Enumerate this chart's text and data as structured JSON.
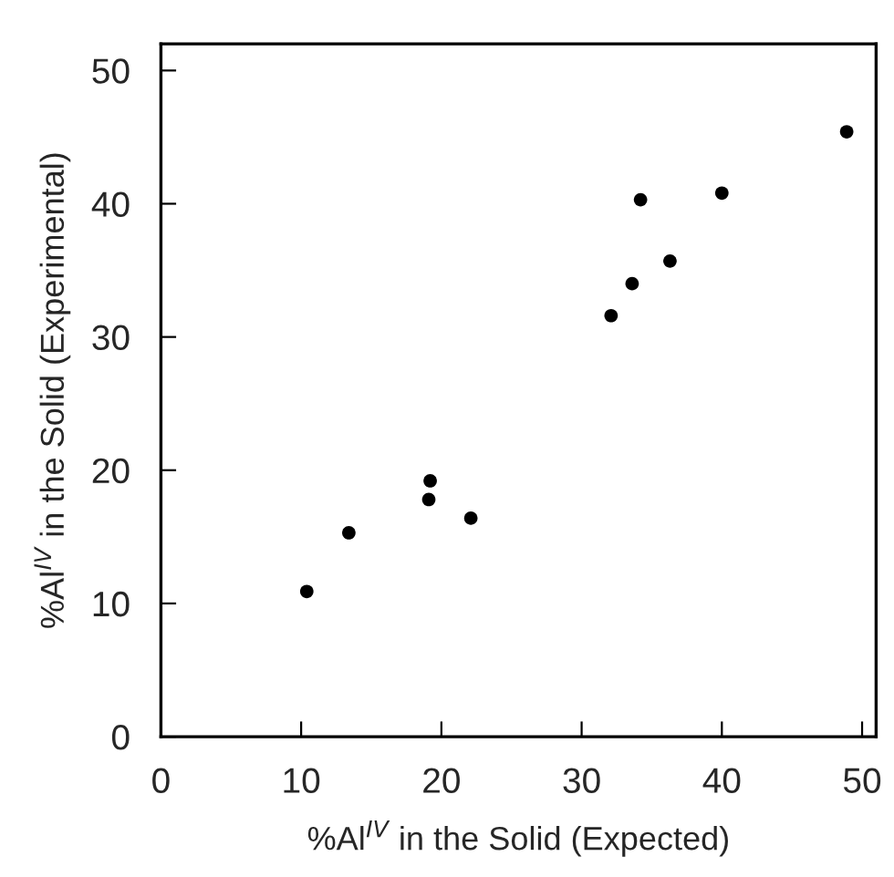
{
  "chart_data": {
    "type": "scatter",
    "xlabel": "%Al$^{IV}$ in the Solid (Expected)",
    "ylabel": "%Al$^{IV}$ in the Solid (Experimental)",
    "x": [
      10.4,
      13.4,
      19.2,
      19.1,
      22.1,
      32.1,
      33.6,
      34.2,
      36.3,
      40.0,
      48.9
    ],
    "series": [
      {
        "color": "#000000",
        "values": [
          10.9,
          15.3,
          19.2,
          17.8,
          16.4,
          31.6,
          34.0,
          40.3,
          35.7,
          40.8,
          45.4
        ]
      }
    ],
    "marker": "circle",
    "xlim": [
      0,
      51
    ],
    "ylim": [
      0,
      52
    ],
    "xticks": [
      0,
      10,
      20,
      30,
      40,
      50
    ],
    "yticks": [
      0,
      10,
      20,
      30,
      40,
      50
    ],
    "grid": false,
    "legend": false
  }
}
